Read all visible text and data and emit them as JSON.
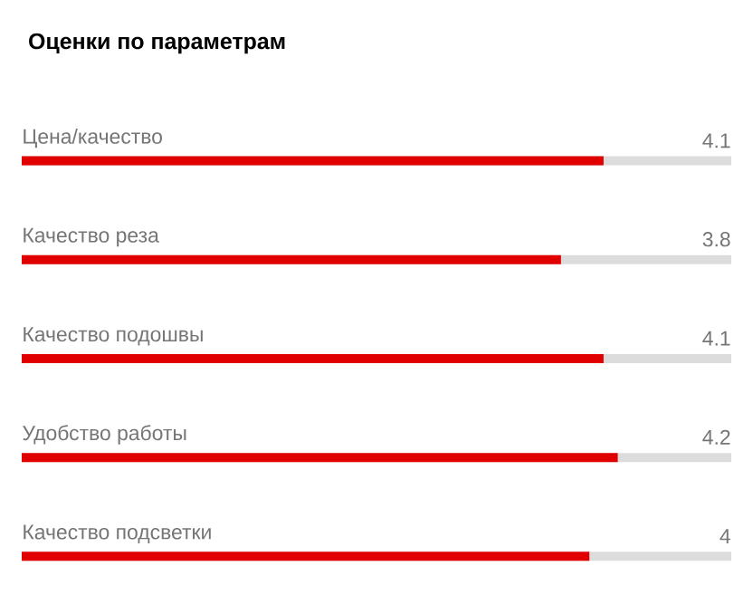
{
  "chart_data": {
    "type": "bar",
    "orientation": "horizontal",
    "title": "Оценки по параметрам",
    "categories": [
      "Цена/качество",
      "Качество реза",
      "Качество подошвы",
      "Удобство работы",
      "Качество подсветки"
    ],
    "values": [
      4.1,
      3.8,
      4.1,
      4.2,
      4
    ],
    "color": "#e00000",
    "xlim": [
      0,
      5
    ],
    "data_labels": true
  }
}
